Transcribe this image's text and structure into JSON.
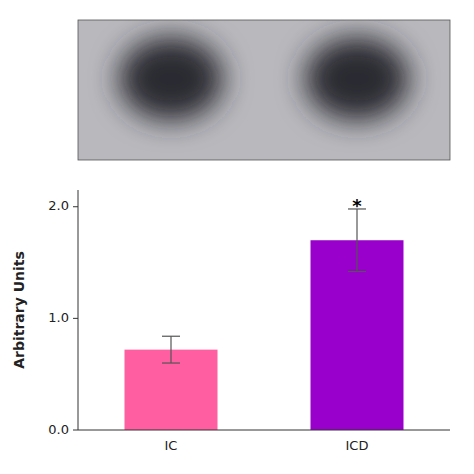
{
  "chart_data": {
    "type": "bar",
    "categories": [
      "IC",
      "ICD"
    ],
    "values": [
      0.72,
      1.7
    ],
    "errors": [
      0.12,
      0.28
    ],
    "colors": [
      "#FF5FA0",
      "#9900CC"
    ],
    "ylabel": "Arbitrary Units",
    "ylim": [
      0,
      2.15
    ],
    "yticks": [
      {
        "value": 0,
        "label": "0.0"
      },
      {
        "value": 1.0,
        "label": "1.0"
      },
      {
        "value": 2.0,
        "label": "2.0"
      }
    ],
    "annotations": [
      {
        "text": "*",
        "x": "ICD",
        "y": 2.01
      }
    ],
    "grid": false
  }
}
